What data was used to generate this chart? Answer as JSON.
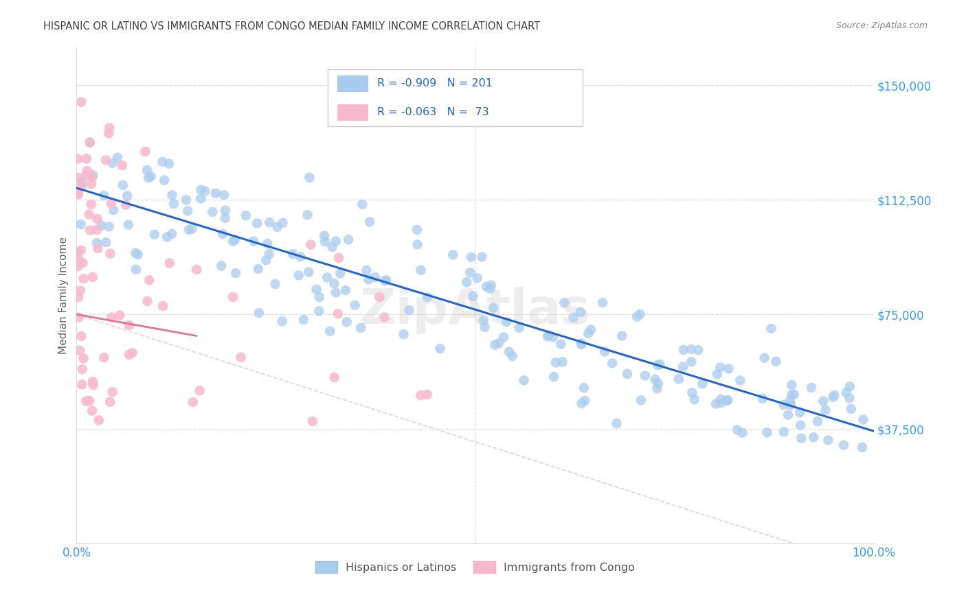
{
  "title": "HISPANIC OR LATINO VS IMMIGRANTS FROM CONGO MEDIAN FAMILY INCOME CORRELATION CHART",
  "source": "Source: ZipAtlas.com",
  "ylabel": "Median Family Income",
  "xlim": [
    0.0,
    1.0
  ],
  "ylim": [
    0,
    162500
  ],
  "xtick_positions": [
    0.0,
    1.0
  ],
  "xtick_labels": [
    "0.0%",
    "100.0%"
  ],
  "ytick_values": [
    37500,
    75000,
    112500,
    150000
  ],
  "ytick_labels": [
    "$37,500",
    "$75,000",
    "$112,500",
    "$150,000"
  ],
  "blue_R": -0.909,
  "blue_N": 201,
  "pink_R": -0.063,
  "pink_N": 73,
  "blue_color": "#a8ccf0",
  "blue_line_color": "#2266cc",
  "pink_color": "#f8b8cc",
  "pink_line_color": "#e87090",
  "pink_dash_color": "#e8c0cc",
  "background_color": "#ffffff",
  "grid_color": "#cccccc",
  "title_color": "#404040",
  "axis_label_color": "#606060",
  "tick_label_color": "#3399ff",
  "source_color": "#888888",
  "watermark": "ZipAtlas",
  "legend_blue_label": "Hispanics or Latinos",
  "legend_pink_label": "Immigrants from Congo",
  "blue_seed": 42,
  "pink_seed": 99
}
